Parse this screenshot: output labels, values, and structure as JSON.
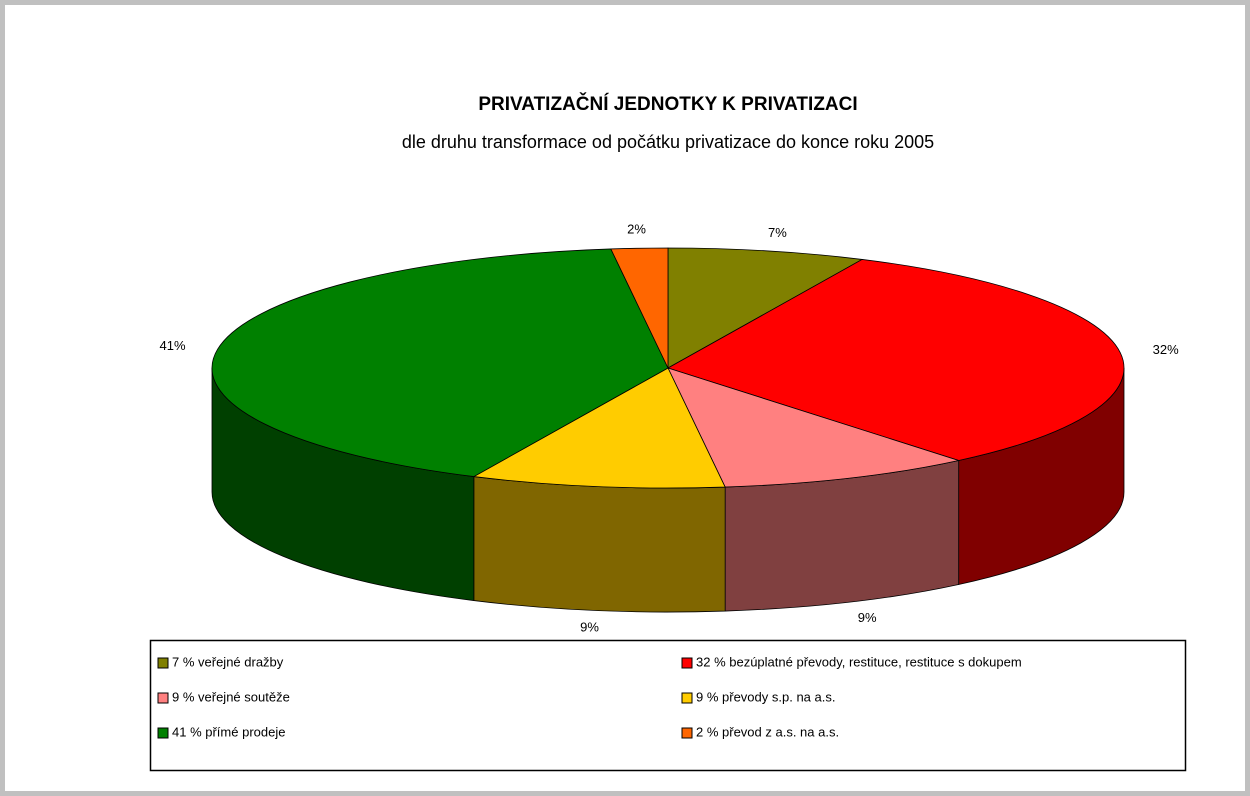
{
  "chart_data": {
    "type": "pie3d",
    "title": "PRIVATIZAČNÍ JEDNOTKY K PRIVATIZACI",
    "subtitle": "dle druhu transformace od počátku privatizace do konce roku 2005",
    "categories": [
      "7 %  veřejné dražby",
      "32 %  bezúplatné převody, restituce, restituce s dokupem",
      "9 %  veřejné soutěže",
      "9 %  převody s.p. na a.s.",
      "41 %  přímé prodeje",
      "2 %  převod z a.s. na a.s."
    ],
    "values": [
      7,
      32,
      9,
      9,
      41,
      2
    ],
    "value_labels": [
      "7%",
      "32%",
      "9%",
      "9%",
      "41%",
      "2%"
    ],
    "colors": [
      "#808000",
      "#ff0000",
      "#ff8080",
      "#ffcc00",
      "#008000",
      "#ff6600"
    ],
    "legend": "bottom"
  }
}
